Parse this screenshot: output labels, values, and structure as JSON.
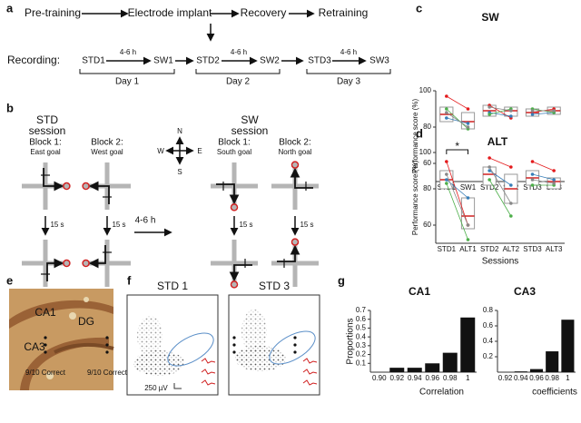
{
  "panel_labels": [
    "a",
    "b",
    "c",
    "d",
    "e",
    "f",
    "g"
  ],
  "timeline": {
    "steps": [
      "Pre-training",
      "Electrode implant",
      "Recovery",
      "Retraining"
    ],
    "recording_label": "Recording:",
    "sessions": [
      "STD1",
      "SW1",
      "STD2",
      "SW2",
      "STD3",
      "SW3"
    ],
    "intervals": [
      "4-6 h",
      "4-6 h",
      "4-6 h"
    ],
    "days": [
      "Day 1",
      "Day 2",
      "Day 3"
    ]
  },
  "diagram": {
    "std_title": "STD",
    "sw_title": "SW",
    "session_word": [
      "session",
      "session"
    ],
    "blocks": [
      {
        "name": "Block 1:",
        "goal": "East goal"
      },
      {
        "name": "Block 2:",
        "goal": "West goal"
      },
      {
        "name": "Block 1:",
        "goal": "South goal"
      },
      {
        "name": "Block 2:",
        "goal": "North goal"
      }
    ],
    "compass": [
      "N",
      "S",
      "W",
      "E"
    ],
    "delays": [
      "15 s",
      "15 s",
      "15 s",
      "15 s"
    ],
    "interval": "4-6 h",
    "outcomes": [
      "9/10 Correct",
      "9/10 Correct"
    ]
  },
  "histology": {
    "labels": [
      "CA1",
      "DG",
      "CA3"
    ]
  },
  "clusters": {
    "titles": [
      "STD 1",
      "STD 3"
    ],
    "scale": "250 µV"
  },
  "chart_data": [
    {
      "type": "box",
      "title": "SW",
      "ylabel": "Performance score (%)",
      "categories": [
        "STD1",
        "SW1",
        "STD2",
        "SW2",
        "STD3",
        "SW3"
      ],
      "median": [
        87,
        83,
        89,
        89,
        88,
        89
      ],
      "q1": [
        83,
        79,
        86,
        86,
        86,
        87
      ],
      "q3": [
        91,
        88,
        92,
        91,
        90,
        91
      ],
      "series": [
        {
          "color": "#e41a1c",
          "values": [
            97,
            90,
            92,
            85,
            88,
            90
          ]
        },
        {
          "color": "#377eb8",
          "values": [
            85,
            82,
            88,
            86,
            87,
            88
          ]
        },
        {
          "color": "#4daf4a",
          "values": [
            90,
            79,
            87,
            90,
            90,
            88
          ]
        },
        {
          "color": "#888888",
          "values": [
            88,
            80,
            91,
            89,
            89,
            89
          ]
        }
      ],
      "ylim": [
        50,
        100
      ],
      "yticks": [
        60,
        80,
        100
      ]
    },
    {
      "type": "box",
      "title": "ALT",
      "ylabel": "Performance score (%)",
      "xlabel": "Sessions",
      "annotation": "*",
      "categories": [
        "STD1",
        "ALT1",
        "STD2",
        "ALT2",
        "STD3",
        "ALT3"
      ],
      "median": [
        85,
        65,
        88,
        80,
        86,
        84
      ],
      "q1": [
        80,
        58,
        82,
        72,
        82,
        80
      ],
      "q3": [
        90,
        75,
        92,
        88,
        90,
        86
      ],
      "series": [
        {
          "color": "#e41a1c",
          "values": [
            95,
            60,
            97,
            92,
            95,
            90
          ]
        },
        {
          "color": "#377eb8",
          "values": [
            85,
            75,
            90,
            82,
            88,
            85
          ]
        },
        {
          "color": "#4daf4a",
          "values": [
            83,
            52,
            85,
            65,
            82,
            82
          ]
        },
        {
          "color": "#888888",
          "values": [
            88,
            60,
            92,
            72,
            85,
            83
          ]
        }
      ],
      "ylim": [
        50,
        100
      ],
      "yticks": [
        60,
        80,
        100
      ]
    },
    {
      "type": "bar",
      "title": "CA1",
      "ylabel": "Proportions",
      "xlabel": "Correlation",
      "color": "#111111",
      "categories": [
        "0.90",
        "0.92",
        "0.94",
        "0.96",
        "0.98",
        "1"
      ],
      "values": [
        0,
        0.05,
        0.05,
        0.1,
        0.22,
        0.62
      ],
      "ylim": [
        0,
        0.7
      ],
      "yticks": [
        0.1,
        0.2,
        0.3,
        0.4,
        0.5,
        0.6,
        0.7
      ]
    },
    {
      "type": "bar",
      "title": "CA3",
      "xlabel": "coefficients",
      "color": "#111111",
      "categories": [
        "0.92",
        "0.94",
        "0.96",
        "0.98",
        "1"
      ],
      "values": [
        0,
        0.01,
        0.04,
        0.27,
        0.68
      ],
      "ylim": [
        0,
        0.8
      ],
      "yticks": [
        0.2,
        0.4,
        0.6,
        0.8
      ]
    }
  ]
}
